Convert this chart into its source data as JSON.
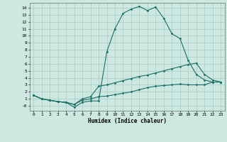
{
  "title": "",
  "xlabel": "Humidex (Indice chaleur)",
  "bg_color": "#cce8e0",
  "line_color": "#1a7068",
  "grid_color": "#a8ccc4",
  "xlim": [
    -0.5,
    23.5
  ],
  "ylim": [
    -0.7,
    14.7
  ],
  "xticks": [
    0,
    1,
    2,
    3,
    4,
    5,
    6,
    7,
    8,
    9,
    10,
    11,
    12,
    13,
    14,
    15,
    16,
    17,
    18,
    19,
    20,
    21,
    22,
    23
  ],
  "yticks": [
    0,
    1,
    2,
    3,
    4,
    5,
    6,
    7,
    8,
    9,
    10,
    11,
    12,
    13,
    14
  ],
  "ytick_labels": [
    "-0",
    "1",
    "2",
    "3",
    "4",
    "5",
    "6",
    "7",
    "8",
    "9",
    "10",
    "11",
    "12",
    "13",
    "14"
  ],
  "line1_x": [
    0,
    1,
    2,
    3,
    4,
    5,
    6,
    7,
    8,
    9,
    10,
    11,
    12,
    13,
    14,
    15,
    16,
    17,
    18,
    19,
    20,
    21,
    22,
    23
  ],
  "line1_y": [
    1.5,
    1.0,
    0.8,
    0.6,
    0.5,
    -0.2,
    0.5,
    0.7,
    0.7,
    7.7,
    11.0,
    13.2,
    13.8,
    14.2,
    13.6,
    14.1,
    12.5,
    10.3,
    9.6,
    6.5,
    4.5,
    3.7,
    3.4,
    3.4
  ],
  "line2_x": [
    0,
    1,
    2,
    3,
    4,
    5,
    6,
    7,
    8,
    9,
    10,
    11,
    12,
    13,
    14,
    15,
    16,
    17,
    18,
    19,
    20,
    21,
    22,
    23
  ],
  "line2_y": [
    1.5,
    1.0,
    0.8,
    0.6,
    0.5,
    0.2,
    1.0,
    1.3,
    2.8,
    3.0,
    3.3,
    3.6,
    3.9,
    4.2,
    4.4,
    4.7,
    5.0,
    5.3,
    5.6,
    5.9,
    6.1,
    4.5,
    3.7,
    3.4
  ],
  "line3_x": [
    0,
    1,
    2,
    3,
    4,
    5,
    6,
    7,
    8,
    9,
    10,
    11,
    12,
    13,
    14,
    15,
    16,
    17,
    18,
    19,
    20,
    21,
    22,
    23
  ],
  "line3_y": [
    1.5,
    1.0,
    0.8,
    0.6,
    0.5,
    0.2,
    0.8,
    1.0,
    1.3,
    1.4,
    1.6,
    1.8,
    2.0,
    2.3,
    2.6,
    2.8,
    2.9,
    3.0,
    3.1,
    3.0,
    3.0,
    3.0,
    3.4,
    3.4
  ]
}
